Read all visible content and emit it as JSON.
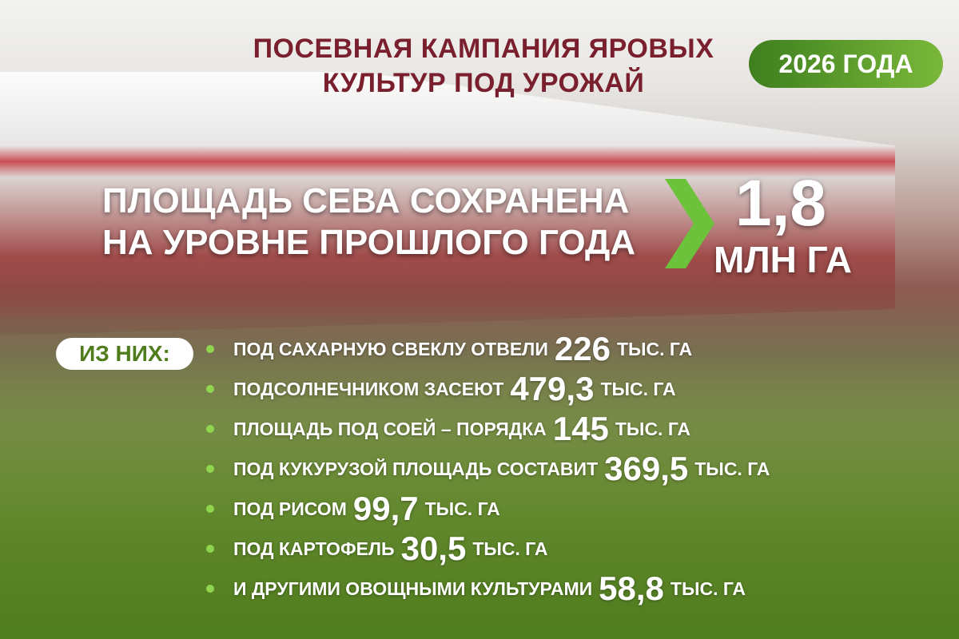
{
  "title": {
    "line1": "ПОСЕВНАЯ КАМПАНИЯ ЯРОВЫХ",
    "line2": "КУЛЬТУР ПОД УРОЖАЙ"
  },
  "year_badge": "2026 ГОДА",
  "headline": {
    "line1": "ПЛОЩАДЬ СЕВА СОХРАНЕНА",
    "line2": "НА УРОВНЕ ПРОШЛОГО ГОДА",
    "value": "1,8",
    "unit": "МЛН ГА"
  },
  "of_them": "ИЗ НИХ:",
  "items": [
    {
      "label": "ПОД САХАРНУЮ СВЕКЛУ ОТВЕЛИ",
      "value": "226",
      "unit": "ТЫС. ГА"
    },
    {
      "label": "ПОДСОЛНЕЧНИКОМ ЗАСЕЮТ",
      "value": "479,3",
      "unit": "ТЫС. ГА"
    },
    {
      "label": "ПЛОЩАДЬ ПОД СОЕЙ – ПОРЯДКА",
      "value": "145",
      "unit": "ТЫС. ГА"
    },
    {
      "label": "ПОД КУКУРУЗОЙ ПЛОЩАДЬ СОСТАВИТ",
      "value": "369,5",
      "unit": "ТЫС. ГА"
    },
    {
      "label": "ПОД РИСОМ",
      "value": "99,7",
      "unit": "ТЫС. ГА"
    },
    {
      "label": "ПОД КАРТОФЕЛЬ",
      "value": "30,5",
      "unit": "ТЫС. ГА"
    },
    {
      "label": "И ДРУГИМИ ОВОЩНЫМИ КУЛЬТУРАМИ",
      "value": "58,8",
      "unit": "ТЫС. ГА"
    }
  ],
  "colors": {
    "title": "#7a1f2e",
    "accent_green": "#6cc23a",
    "bullet": "#8fd64e"
  }
}
